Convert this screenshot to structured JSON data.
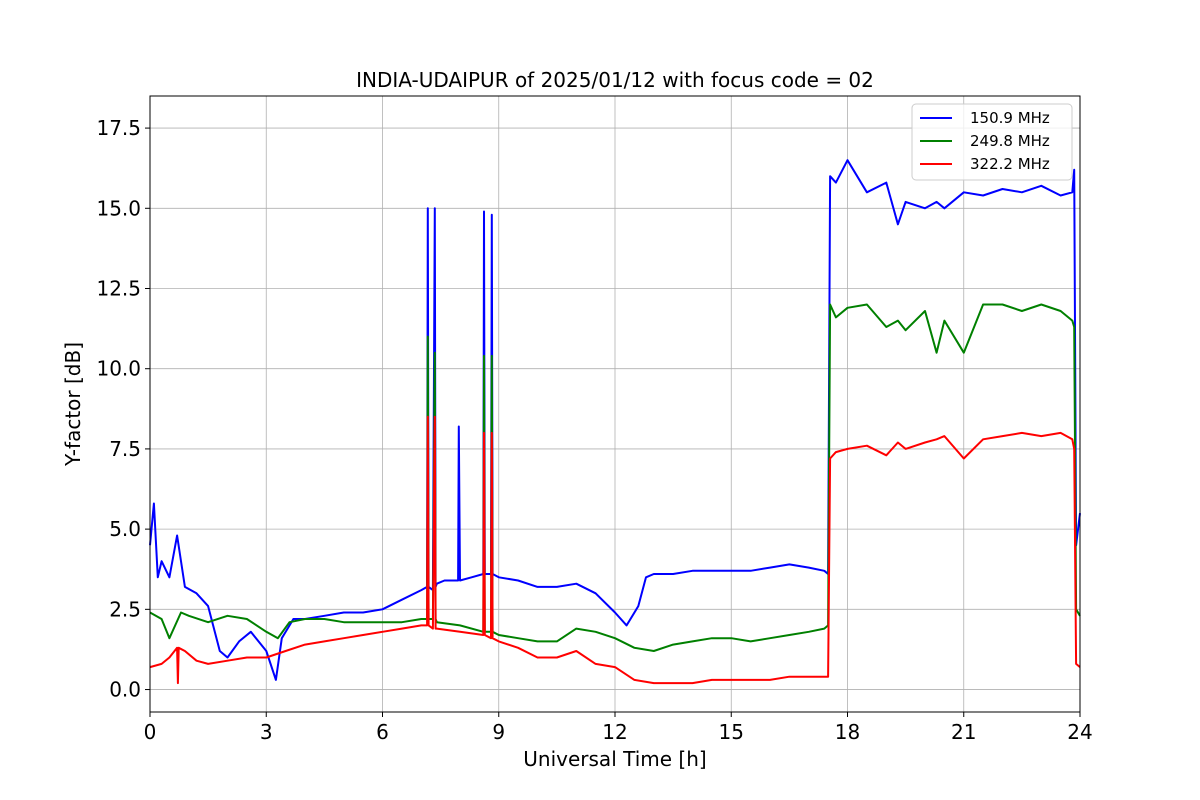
{
  "chart_data": {
    "type": "line",
    "title": "INDIA-UDAIPUR of 2025/01/12 with focus code = 02",
    "xlabel": "Universal Time [h]",
    "ylabel": "Y-factor [dB]",
    "xlim": [
      0,
      24
    ],
    "ylim": [
      -0.7,
      18.5
    ],
    "xticks": [
      0,
      3,
      6,
      9,
      12,
      15,
      18,
      21,
      24
    ],
    "yticks": [
      0.0,
      2.5,
      5.0,
      7.5,
      10.0,
      12.5,
      15.0,
      17.5
    ],
    "xtick_labels": [
      "0",
      "3",
      "6",
      "9",
      "12",
      "15",
      "18",
      "21",
      "24"
    ],
    "ytick_labels": [
      "0.0",
      "2.5",
      "5.0",
      "7.5",
      "10.0",
      "12.5",
      "15.0",
      "17.5"
    ],
    "grid": true,
    "legend_position": "top-right",
    "series": [
      {
        "name": "150.9 MHz",
        "color": "#0000ff",
        "x": [
          0,
          0.1,
          0.2,
          0.3,
          0.5,
          0.7,
          0.9,
          1.2,
          1.5,
          1.8,
          2.0,
          2.3,
          2.6,
          3.0,
          3.25,
          3.4,
          3.7,
          4.0,
          4.5,
          5.0,
          5.5,
          6.0,
          6.5,
          7.0,
          7.15,
          7.17,
          7.19,
          7.3,
          7.35,
          7.37,
          7.4,
          7.6,
          7.95,
          7.97,
          8.0,
          8.3,
          8.6,
          8.62,
          8.64,
          8.8,
          8.82,
          8.84,
          9.0,
          9.5,
          10.0,
          10.5,
          11.0,
          11.5,
          12.0,
          12.3,
          12.6,
          12.8,
          13.0,
          13.3,
          13.5,
          14.0,
          14.5,
          15.0,
          15.5,
          16.0,
          16.5,
          17.0,
          17.4,
          17.5,
          17.55,
          17.7,
          18.0,
          18.5,
          19.0,
          19.3,
          19.5,
          20.0,
          20.3,
          20.5,
          21.0,
          21.5,
          22.0,
          22.5,
          23.0,
          23.5,
          23.8,
          23.85,
          23.9,
          24.0
        ],
        "y": [
          4.5,
          5.8,
          3.5,
          4.0,
          3.5,
          4.8,
          3.2,
          3.0,
          2.6,
          1.2,
          1.0,
          1.5,
          1.8,
          1.2,
          0.3,
          1.6,
          2.2,
          2.2,
          2.3,
          2.4,
          2.4,
          2.5,
          2.8,
          3.1,
          3.2,
          15.0,
          3.2,
          3.1,
          15.0,
          3.2,
          3.3,
          3.4,
          3.4,
          8.2,
          3.4,
          3.5,
          3.6,
          14.9,
          3.6,
          3.6,
          14.8,
          3.6,
          3.5,
          3.4,
          3.2,
          3.2,
          3.3,
          3.0,
          2.4,
          2.0,
          2.6,
          3.5,
          3.6,
          3.6,
          3.6,
          3.7,
          3.7,
          3.7,
          3.7,
          3.8,
          3.9,
          3.8,
          3.7,
          3.6,
          16.0,
          15.8,
          16.5,
          15.5,
          15.8,
          14.5,
          15.2,
          15.0,
          15.2,
          15.0,
          15.5,
          15.4,
          15.6,
          15.5,
          15.7,
          15.4,
          15.5,
          16.2,
          4.5,
          5.5
        ]
      },
      {
        "name": "249.8 MHz",
        "color": "#008000",
        "x": [
          0,
          0.3,
          0.5,
          0.8,
          1.0,
          1.5,
          2.0,
          2.5,
          3.0,
          3.3,
          3.6,
          4.0,
          4.5,
          5.0,
          5.5,
          6.0,
          6.5,
          7.0,
          7.15,
          7.17,
          7.19,
          7.3,
          7.35,
          7.37,
          7.4,
          8.0,
          8.6,
          8.62,
          8.64,
          8.8,
          8.82,
          8.84,
          9.0,
          9.5,
          10.0,
          10.5,
          11.0,
          11.5,
          12.0,
          12.5,
          13.0,
          13.5,
          14.0,
          14.5,
          15.0,
          15.5,
          16.0,
          16.5,
          17.0,
          17.4,
          17.5,
          17.55,
          17.7,
          18.0,
          18.5,
          19.0,
          19.3,
          19.5,
          20.0,
          20.3,
          20.5,
          21.0,
          21.5,
          22.0,
          22.5,
          23.0,
          23.5,
          23.8,
          23.85,
          23.9,
          24.0
        ],
        "y": [
          2.4,
          2.2,
          1.6,
          2.4,
          2.3,
          2.1,
          2.3,
          2.2,
          1.8,
          1.6,
          2.1,
          2.2,
          2.2,
          2.1,
          2.1,
          2.1,
          2.1,
          2.2,
          2.2,
          11.0,
          2.2,
          2.2,
          10.5,
          2.2,
          2.1,
          2.0,
          1.8,
          10.4,
          1.8,
          1.8,
          10.4,
          1.8,
          1.7,
          1.6,
          1.5,
          1.5,
          1.9,
          1.8,
          1.6,
          1.3,
          1.2,
          1.4,
          1.5,
          1.6,
          1.6,
          1.5,
          1.6,
          1.7,
          1.8,
          1.9,
          2.0,
          12.0,
          11.6,
          11.9,
          12.0,
          11.3,
          11.5,
          11.2,
          11.8,
          10.5,
          11.5,
          10.5,
          12.0,
          12.0,
          11.8,
          12.0,
          11.8,
          11.5,
          11.3,
          2.5,
          2.3
        ]
      },
      {
        "name": "322.2 MHz",
        "color": "#ff0000",
        "x": [
          0,
          0.3,
          0.5,
          0.7,
          0.72,
          0.74,
          0.9,
          1.2,
          1.5,
          2.0,
          2.5,
          3.0,
          3.5,
          4.0,
          4.5,
          5.0,
          5.5,
          6.0,
          6.5,
          7.0,
          7.15,
          7.17,
          7.19,
          7.3,
          7.35,
          7.37,
          7.4,
          8.0,
          8.6,
          8.62,
          8.64,
          8.8,
          8.82,
          8.84,
          9.0,
          9.5,
          10.0,
          10.5,
          11.0,
          11.5,
          12.0,
          12.5,
          13.0,
          13.5,
          14.0,
          14.5,
          15.0,
          15.5,
          16.0,
          16.5,
          17.0,
          17.4,
          17.5,
          17.55,
          17.7,
          18.0,
          18.5,
          19.0,
          19.3,
          19.5,
          20.0,
          20.3,
          20.5,
          21.0,
          21.5,
          22.0,
          22.5,
          23.0,
          23.5,
          23.8,
          23.85,
          23.9,
          24.0
        ],
        "y": [
          0.7,
          0.8,
          1.0,
          1.3,
          0.2,
          1.3,
          1.2,
          0.9,
          0.8,
          0.9,
          1.0,
          1.0,
          1.2,
          1.4,
          1.5,
          1.6,
          1.7,
          1.8,
          1.9,
          2.0,
          2.0,
          8.5,
          2.0,
          1.9,
          8.5,
          1.9,
          1.9,
          1.8,
          1.7,
          8.0,
          1.7,
          1.6,
          8.0,
          1.6,
          1.5,
          1.3,
          1.0,
          1.0,
          1.2,
          0.8,
          0.7,
          0.3,
          0.2,
          0.2,
          0.2,
          0.3,
          0.3,
          0.3,
          0.3,
          0.4,
          0.4,
          0.4,
          0.4,
          7.2,
          7.4,
          7.5,
          7.6,
          7.3,
          7.7,
          7.5,
          7.7,
          7.8,
          7.9,
          7.2,
          7.8,
          7.9,
          8.0,
          7.9,
          8.0,
          7.8,
          7.5,
          0.8,
          0.7
        ]
      }
    ]
  }
}
